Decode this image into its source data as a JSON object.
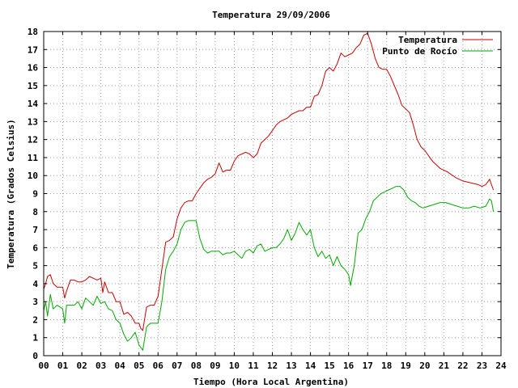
{
  "chart_data": {
    "type": "line",
    "title": "Temperatura 29/09/2006",
    "xlabel": "Tiempo (Hora Local Argentina)",
    "ylabel": "Temperatura (Grados Celsius)",
    "xlim": [
      0,
      24
    ],
    "ylim": [
      0,
      18
    ],
    "grid": true,
    "legend": "top-right",
    "x_ticks": [
      "00",
      "01",
      "02",
      "03",
      "04",
      "05",
      "06",
      "07",
      "08",
      "09",
      "10",
      "11",
      "12",
      "13",
      "14",
      "15",
      "16",
      "17",
      "18",
      "19",
      "20",
      "21",
      "22",
      "23",
      "24"
    ],
    "y_ticks": [
      0,
      1,
      2,
      3,
      4,
      5,
      6,
      7,
      8,
      9,
      10,
      11,
      12,
      13,
      14,
      15,
      16,
      17,
      18
    ],
    "series": [
      {
        "name": "Temperatura",
        "color": "#cc0000",
        "x": [
          0.0,
          0.1,
          0.2,
          0.35,
          0.5,
          0.7,
          1.0,
          1.1,
          1.2,
          1.4,
          1.6,
          1.8,
          2.0,
          2.2,
          2.4,
          2.6,
          2.8,
          3.0,
          3.1,
          3.2,
          3.4,
          3.6,
          3.8,
          4.0,
          4.2,
          4.4,
          4.6,
          4.8,
          5.0,
          5.1,
          5.2,
          5.4,
          5.6,
          5.8,
          6.0,
          6.2,
          6.4,
          6.6,
          6.8,
          7.0,
          7.2,
          7.4,
          7.6,
          7.8,
          8.0,
          8.2,
          8.4,
          8.6,
          8.8,
          9.0,
          9.2,
          9.4,
          9.6,
          9.8,
          10.0,
          10.2,
          10.4,
          10.6,
          10.8,
          11.0,
          11.2,
          11.4,
          11.6,
          11.8,
          12.0,
          12.2,
          12.4,
          12.6,
          12.8,
          13.0,
          13.2,
          13.4,
          13.6,
          13.8,
          14.0,
          14.2,
          14.4,
          14.6,
          14.8,
          15.0,
          15.2,
          15.4,
          15.6,
          15.8,
          16.0,
          16.2,
          16.4,
          16.6,
          16.8,
          17.0,
          17.2,
          17.4,
          17.6,
          17.8,
          18.0,
          18.2,
          18.4,
          18.6,
          18.8,
          19.0,
          19.2,
          19.4,
          19.6,
          19.8,
          20.0,
          20.4,
          20.8,
          21.2,
          21.6,
          22.0,
          22.4,
          22.8,
          23.0,
          23.2,
          23.4,
          23.5,
          23.6
        ],
        "y": [
          3.7,
          4.0,
          4.4,
          4.5,
          4.0,
          3.8,
          3.8,
          3.2,
          3.6,
          4.2,
          4.2,
          4.1,
          4.1,
          4.2,
          4.4,
          4.3,
          4.2,
          4.3,
          3.5,
          4.1,
          3.5,
          3.5,
          3.0,
          3.0,
          2.3,
          2.4,
          2.2,
          1.8,
          1.8,
          1.5,
          1.4,
          2.7,
          2.8,
          2.8,
          3.3,
          4.8,
          6.3,
          6.4,
          6.6,
          7.6,
          8.2,
          8.5,
          8.6,
          8.6,
          9.0,
          9.3,
          9.6,
          9.8,
          9.9,
          10.1,
          10.7,
          10.2,
          10.3,
          10.3,
          10.8,
          11.1,
          11.2,
          11.3,
          11.2,
          11.0,
          11.2,
          11.8,
          12.0,
          12.2,
          12.5,
          12.8,
          13.0,
          13.1,
          13.2,
          13.4,
          13.5,
          13.6,
          13.6,
          13.8,
          13.8,
          14.4,
          14.5,
          15.0,
          15.8,
          16.0,
          15.8,
          16.2,
          16.8,
          16.6,
          16.7,
          16.8,
          17.1,
          17.3,
          17.8,
          17.9,
          17.3,
          16.5,
          16.0,
          15.9,
          15.9,
          15.5,
          15.0,
          14.5,
          13.9,
          13.7,
          13.5,
          12.8,
          12.0,
          11.6,
          11.4,
          10.8,
          10.4,
          10.2,
          9.9,
          9.7,
          9.6,
          9.5,
          9.4,
          9.5,
          9.8,
          9.5,
          9.2
        ]
      },
      {
        "name": "Punto de Rocío",
        "color": "#00aa00",
        "x": [
          0.0,
          0.1,
          0.2,
          0.35,
          0.5,
          0.7,
          1.0,
          1.1,
          1.2,
          1.4,
          1.6,
          1.8,
          2.0,
          2.2,
          2.4,
          2.6,
          2.8,
          3.0,
          3.2,
          3.4,
          3.6,
          3.8,
          4.0,
          4.2,
          4.4,
          4.6,
          4.8,
          5.0,
          5.2,
          5.4,
          5.6,
          5.8,
          6.0,
          6.2,
          6.4,
          6.6,
          6.8,
          7.0,
          7.2,
          7.4,
          7.6,
          7.8,
          8.0,
          8.2,
          8.4,
          8.6,
          8.8,
          9.0,
          9.2,
          9.4,
          9.6,
          9.8,
          10.0,
          10.2,
          10.4,
          10.6,
          10.8,
          11.0,
          11.2,
          11.4,
          11.6,
          11.8,
          12.0,
          12.2,
          12.4,
          12.6,
          12.8,
          13.0,
          13.2,
          13.4,
          13.6,
          13.8,
          14.0,
          14.2,
          14.4,
          14.6,
          14.8,
          15.0,
          15.2,
          15.4,
          15.6,
          15.8,
          16.0,
          16.1,
          16.3,
          16.5,
          16.7,
          16.9,
          17.1,
          17.3,
          17.5,
          17.7,
          17.9,
          18.1,
          18.3,
          18.5,
          18.7,
          18.9,
          19.1,
          19.3,
          19.5,
          19.7,
          19.9,
          20.2,
          20.5,
          20.8,
          21.1,
          21.4,
          21.7,
          22.0,
          22.3,
          22.6,
          22.9,
          23.2,
          23.4,
          23.5,
          23.6
        ],
        "y": [
          2.5,
          3.0,
          2.2,
          3.4,
          2.6,
          2.8,
          2.6,
          1.8,
          2.8,
          2.8,
          2.8,
          3.0,
          2.6,
          3.2,
          3.0,
          2.8,
          3.3,
          2.9,
          3.0,
          2.6,
          2.5,
          2.0,
          1.8,
          1.2,
          0.8,
          1.0,
          1.3,
          0.6,
          0.3,
          1.6,
          1.8,
          1.8,
          1.8,
          3.0,
          4.8,
          5.5,
          5.8,
          6.2,
          7.0,
          7.4,
          7.5,
          7.5,
          7.5,
          6.5,
          5.9,
          5.7,
          5.8,
          5.8,
          5.8,
          5.6,
          5.7,
          5.7,
          5.8,
          5.6,
          5.4,
          5.8,
          5.9,
          5.7,
          6.1,
          6.2,
          5.8,
          5.9,
          6.0,
          6.0,
          6.2,
          6.5,
          7.0,
          6.4,
          6.8,
          7.4,
          7.0,
          6.7,
          7.0,
          6.0,
          5.5,
          5.8,
          5.4,
          5.6,
          5.0,
          5.5,
          5.0,
          4.8,
          4.5,
          3.9,
          5.0,
          6.8,
          7.0,
          7.6,
          8.0,
          8.6,
          8.8,
          9.0,
          9.1,
          9.2,
          9.3,
          9.4,
          9.4,
          9.2,
          8.8,
          8.6,
          8.5,
          8.3,
          8.2,
          8.3,
          8.4,
          8.5,
          8.5,
          8.4,
          8.3,
          8.2,
          8.2,
          8.3,
          8.2,
          8.3,
          8.7,
          8.6,
          8.0
        ]
      }
    ]
  }
}
